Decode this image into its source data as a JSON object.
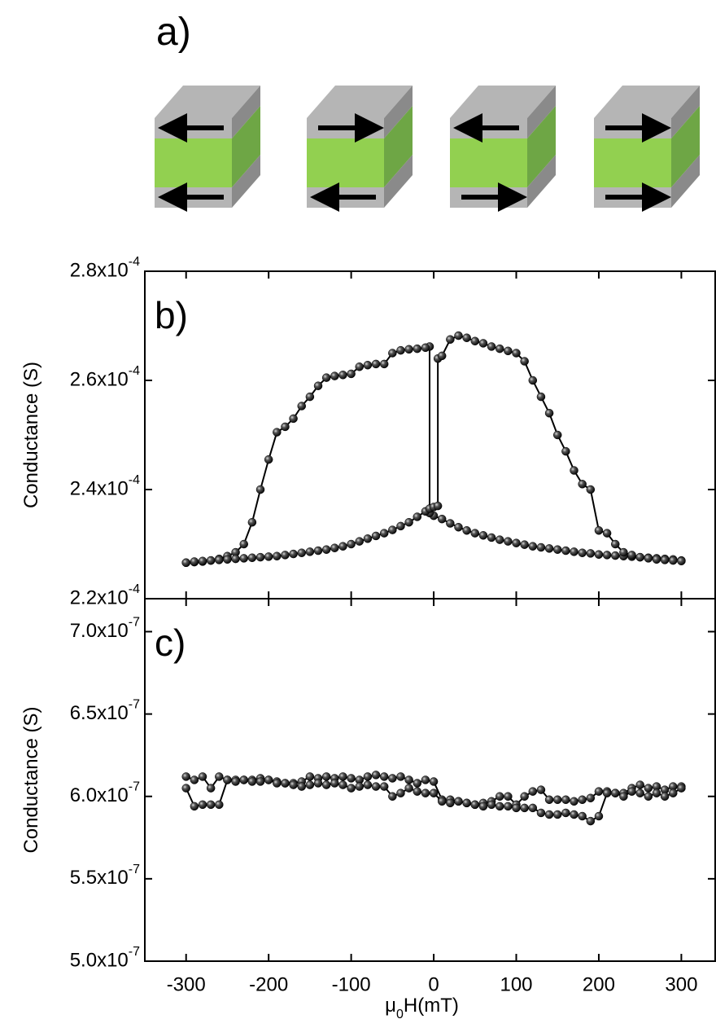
{
  "diagram": {
    "label": "a)"
  },
  "chart_data": [
    {
      "type": "line-scatter",
      "annotation": "b)",
      "ylabel": "Conductance (S)",
      "xlim": [
        -350,
        341
      ],
      "ylim": [
        0.00022,
        0.00028
      ],
      "xticks": [
        -300,
        -200,
        -100,
        0,
        100,
        200,
        300
      ],
      "yticks": [
        {
          "value": 0.00022,
          "label": "2.2x10-4"
        },
        {
          "value": 0.00024,
          "label": "2.4x10-4"
        },
        {
          "value": 0.00026,
          "label": "2.6x10-4"
        },
        {
          "value": 0.00028,
          "label": "2.8x10-4"
        }
      ],
      "color": "#000000",
      "series": [
        {
          "x": [
            300,
            290,
            280,
            270,
            260,
            250,
            240,
            230,
            220,
            210,
            200,
            190,
            180,
            170,
            160,
            150,
            140,
            130,
            120,
            110,
            100,
            90,
            80,
            70,
            60,
            50,
            40,
            30,
            20,
            10,
            0,
            -5,
            -5,
            -10,
            -20,
            -30,
            -40,
            -50,
            -60,
            -70,
            -80,
            -90,
            -100,
            -110,
            -120,
            -130,
            -140,
            -150,
            -160,
            -170,
            -180,
            -190,
            -200,
            -210,
            -220,
            -230,
            -240,
            -250,
            -260,
            -270,
            -280,
            -290,
            -300
          ],
          "values": [
            0.000227,
            0.0002272,
            0.0002273,
            0.0002274,
            0.0002275,
            0.0002276,
            0.0002277,
            0.0002278,
            0.0002279,
            0.000228,
            0.0002281,
            0.0002283,
            0.0002284,
            0.0002286,
            0.0002288,
            0.000229,
            0.0002292,
            0.0002294,
            0.0002296,
            0.0002299,
            0.0002302,
            0.0002305,
            0.0002308,
            0.0002312,
            0.0002316,
            0.000232,
            0.0002325,
            0.0002331,
            0.0002338,
            0.0002346,
            0.0002352,
            0.0002357,
            0.0002662,
            0.000266,
            0.0002658,
            0.0002657,
            0.0002655,
            0.000265,
            0.000263,
            0.000263,
            0.0002628,
            0.0002625,
            0.0002612,
            0.000261,
            0.0002608,
            0.0002605,
            0.000259,
            0.000257,
            0.0002553,
            0.000253,
            0.0002515,
            0.0002505,
            0.0002455,
            0.00024,
            0.000234,
            0.00023,
            0.0002285,
            0.0002278,
            0.0002273,
            0.000227,
            0.0002268,
            0.0002267,
            0.0002266
          ]
        },
        {
          "x": [
            -300,
            -290,
            -280,
            -270,
            -260,
            -250,
            -240,
            -230,
            -220,
            -210,
            -200,
            -190,
            -180,
            -170,
            -160,
            -150,
            -140,
            -130,
            -120,
            -110,
            -100,
            -90,
            -80,
            -70,
            -60,
            -50,
            -40,
            -30,
            -20,
            -10,
            -5,
            0,
            5,
            5,
            10,
            20,
            30,
            40,
            50,
            60,
            70,
            80,
            90,
            100,
            110,
            120,
            130,
            140,
            150,
            160,
            170,
            180,
            190,
            200,
            210,
            220,
            230,
            240,
            250,
            260,
            270,
            280,
            290,
            300
          ],
          "values": [
            0.0002266,
            0.0002268,
            0.0002269,
            0.000227,
            0.0002271,
            0.0002272,
            0.0002273,
            0.0002274,
            0.0002275,
            0.0002276,
            0.0002277,
            0.0002278,
            0.000228,
            0.0002282,
            0.0002284,
            0.0002286,
            0.0002288,
            0.000229,
            0.0002293,
            0.0002296,
            0.00023,
            0.0002305,
            0.000231,
            0.0002315,
            0.000232,
            0.0002326,
            0.0002333,
            0.000234,
            0.000235,
            0.000236,
            0.0002365,
            0.0002368,
            0.000237,
            0.000264,
            0.0002645,
            0.0002675,
            0.0002682,
            0.0002678,
            0.0002672,
            0.0002668,
            0.0002662,
            0.0002658,
            0.0002654,
            0.000265,
            0.0002635,
            0.00026,
            0.000257,
            0.000254,
            0.00025,
            0.000247,
            0.0002435,
            0.000241,
            0.00024,
            0.0002325,
            0.000232,
            0.00023,
            0.0002285,
            0.000228,
            0.0002276,
            0.0002274,
            0.0002272,
            0.0002271,
            0.000227,
            0.0002269
          ]
        }
      ]
    },
    {
      "type": "line-scatter",
      "annotation": "c)",
      "ylabel": "Conductance (S)",
      "xlabel": "μ0H(mT)",
      "xlim": [
        -350,
        341
      ],
      "ylim": [
        5e-07,
        7.2e-07
      ],
      "xticks": [
        -300,
        -200,
        -100,
        0,
        100,
        200,
        300
      ],
      "yticks": [
        {
          "value": 5e-07,
          "label": "5.0x10-7"
        },
        {
          "value": 5.5e-07,
          "label": "5.5x10-7"
        },
        {
          "value": 6e-07,
          "label": "6.0x10-7"
        },
        {
          "value": 6.5e-07,
          "label": "6.5x10-7"
        },
        {
          "value": 7e-07,
          "label": "7.0x10-7"
        }
      ],
      "color": "#000000",
      "series": [
        {
          "x": [
            -300,
            -290,
            -280,
            -270,
            -260,
            -250,
            -240,
            -230,
            -220,
            -210,
            -200,
            -190,
            -180,
            -170,
            -160,
            -150,
            -140,
            -130,
            -120,
            -110,
            -100,
            -90,
            -80,
            -70,
            -60,
            -50,
            -40,
            -30,
            -20,
            -10,
            0,
            10,
            20,
            30,
            40,
            50,
            60,
            70,
            80,
            90,
            100,
            110,
            120,
            130,
            140,
            150,
            160,
            170,
            180,
            190,
            200,
            210,
            220,
            230,
            240,
            250,
            260,
            270,
            280,
            290,
            300
          ],
          "values": [
            6.12e-07,
            6.1e-07,
            6.12e-07,
            6.05e-07,
            6.12e-07,
            6.1e-07,
            6.1e-07,
            6.1e-07,
            6.1e-07,
            6.11e-07,
            6.1e-07,
            6.09e-07,
            6.08e-07,
            6.08e-07,
            6.09e-07,
            6.12e-07,
            6.11e-07,
            6.12e-07,
            6.11e-07,
            6.12e-07,
            6.11e-07,
            6.1e-07,
            6.12e-07,
            6.13e-07,
            6.12e-07,
            6.11e-07,
            6.12e-07,
            6.1e-07,
            6.08e-07,
            6.1e-07,
            6.09e-07,
            5.98e-07,
            5.98e-07,
            5.97e-07,
            5.96e-07,
            5.95e-07,
            5.96e-07,
            5.97e-07,
            6e-07,
            6e-07,
            5.95e-07,
            6e-07,
            6.03e-07,
            6.04e-07,
            5.98e-07,
            5.98e-07,
            5.98e-07,
            5.97e-07,
            5.98e-07,
            5.99e-07,
            6.03e-07,
            6.03e-07,
            6.02e-07,
            6.02e-07,
            6.05e-07,
            6.07e-07,
            6.05e-07,
            6.06e-07,
            6.04e-07,
            6.06e-07,
            6.06e-07
          ]
        },
        {
          "x": [
            300,
            290,
            280,
            270,
            260,
            250,
            240,
            230,
            220,
            210,
            200,
            190,
            180,
            170,
            160,
            150,
            140,
            130,
            120,
            110,
            100,
            90,
            80,
            70,
            60,
            50,
            40,
            30,
            20,
            10,
            0,
            -10,
            -20,
            -30,
            -40,
            -50,
            -60,
            -70,
            -80,
            -90,
            -100,
            -110,
            -120,
            -130,
            -140,
            -150,
            -160,
            -170,
            -180,
            -190,
            -200,
            -210,
            -220,
            -230,
            -240,
            -250,
            -260,
            -270,
            -280,
            -290,
            -300
          ],
          "values": [
            6.05e-07,
            6.02e-07,
            6e-07,
            6.02e-07,
            6e-07,
            6.02e-07,
            6.03e-07,
            6e-07,
            6.02e-07,
            6.02e-07,
            5.88e-07,
            5.85e-07,
            5.88e-07,
            5.89e-07,
            5.9e-07,
            5.89e-07,
            5.89e-07,
            5.9e-07,
            5.93e-07,
            5.93e-07,
            5.93e-07,
            5.94e-07,
            5.94e-07,
            5.95e-07,
            5.94e-07,
            5.95e-07,
            5.96e-07,
            5.97e-07,
            5.96e-07,
            5.97e-07,
            6.02e-07,
            6.02e-07,
            6.03e-07,
            6.05e-07,
            6.02e-07,
            6e-07,
            6.06e-07,
            6.06e-07,
            6.07e-07,
            6.06e-07,
            6.05e-07,
            6.07e-07,
            6.08e-07,
            6.07e-07,
            6.08e-07,
            6.07e-07,
            6.06e-07,
            6.07e-07,
            6.08e-07,
            6.08e-07,
            6.1e-07,
            6.09e-07,
            6.09e-07,
            6.1e-07,
            6.09e-07,
            6.1e-07,
            5.95e-07,
            5.95e-07,
            5.95e-07,
            5.94e-07,
            6.05e-07
          ]
        }
      ]
    }
  ]
}
